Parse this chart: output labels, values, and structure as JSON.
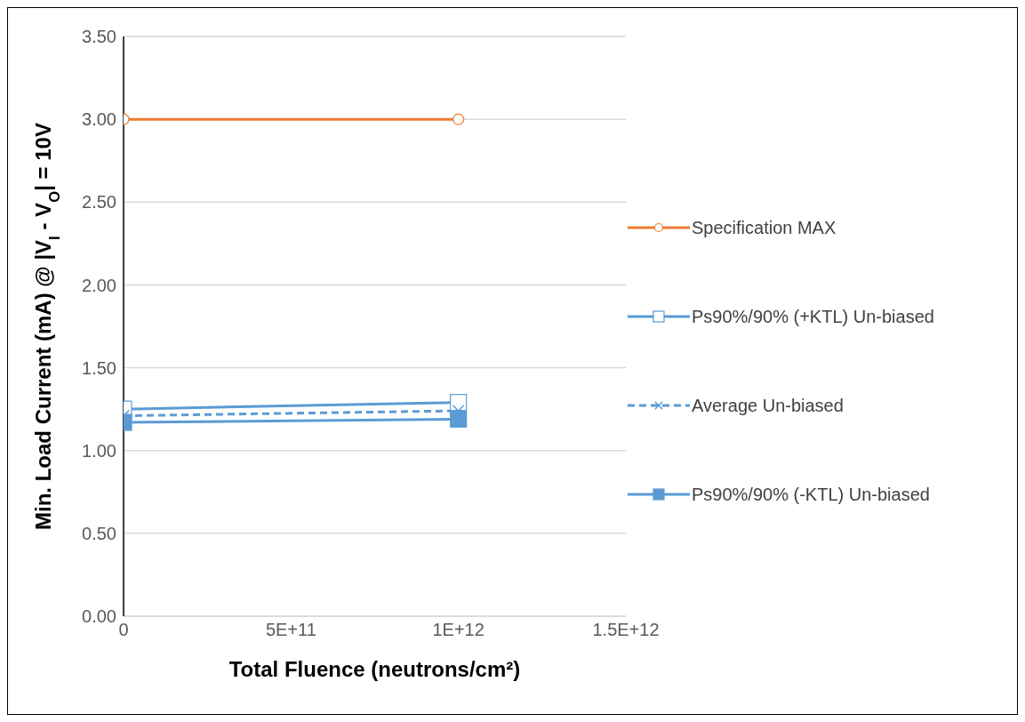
{
  "chart_data": {
    "type": "line",
    "xlabel": "Total Fluence (neutrons/cm²)",
    "ylabel": "Min. Load Current (mA) @ |V$_{I}$ - V$_{O}$| = 10V",
    "x": [
      0,
      1000000000000
    ],
    "series": [
      {
        "name": "Specification MAX",
        "color": "#ed7d31",
        "values": [
          3.0,
          3.0
        ],
        "marker": "circle",
        "line_style": "solid"
      },
      {
        "name": "Ps90%/90% (+KTL) Un-biased",
        "color": "#5b9bd5",
        "values": [
          1.25,
          1.29
        ],
        "marker": "square",
        "line_style": "solid"
      },
      {
        "name": "Average Un-biased",
        "color": "#5b9bd5",
        "values": [
          1.21,
          1.24
        ],
        "marker": "cross",
        "line_style": "dashed"
      },
      {
        "name": "Ps90%/90% (-KTL) Un-biased",
        "color": "#5b9bd5",
        "values": [
          1.17,
          1.19
        ],
        "marker": "square",
        "line_style": "solid"
      }
    ],
    "xlim": [
      0,
      1500000000000
    ],
    "xticks": [
      0,
      {
        "value": 500000000000,
        "label": "5E+11"
      },
      {
        "value": 1000000000000,
        "label": "1E+12"
      },
      {
        "value": 1500000000000,
        "label": "1.5E+12"
      }
    ],
    "ylim": [
      0,
      3.5
    ],
    "yticks": [
      {
        "value": 0,
        "label": "0.00"
      },
      {
        "value": 0.5,
        "label": "0.50"
      },
      {
        "value": 1,
        "label": "1.00"
      },
      {
        "value": 1.5,
        "label": "1.50"
      },
      {
        "value": 2,
        "label": "2.00"
      },
      {
        "value": 2.5,
        "label": "2.50"
      },
      {
        "value": 3,
        "label": "3.00"
      },
      {
        "value": 3.5,
        "label": "3.50"
      }
    ],
    "grid": "y",
    "legend": "right"
  }
}
